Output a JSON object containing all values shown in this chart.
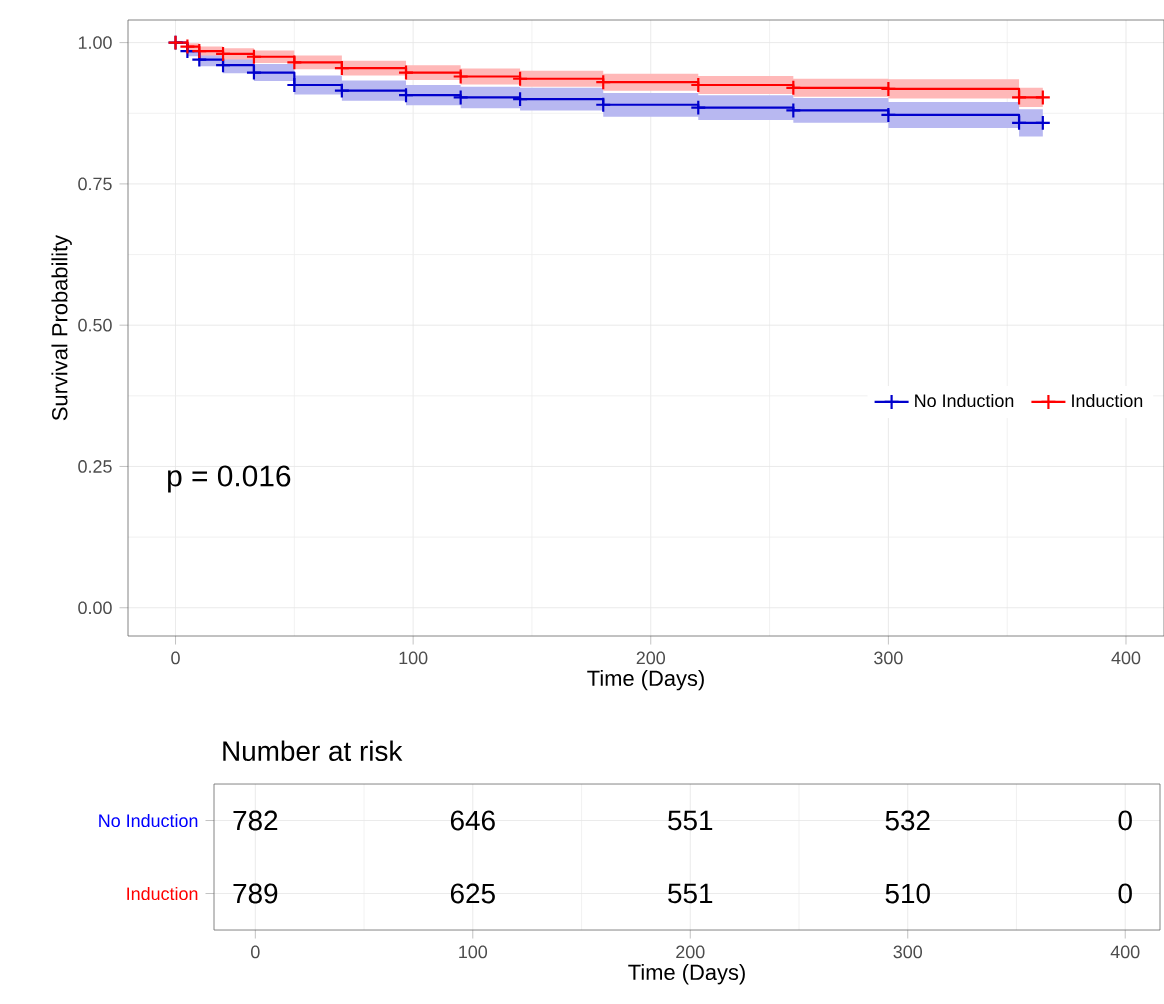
{
  "chart_data": [
    {
      "type": "step",
      "xlabel": "Time (Days)",
      "ylabel": "Survival Probability",
      "xlim": [
        -20,
        416
      ],
      "ylim": [
        -0.05,
        1.04
      ],
      "xticks": [
        0,
        100,
        200,
        300,
        400
      ],
      "yticks": [
        {
          "value": 0,
          "label": "0.00"
        },
        {
          "value": 0.25,
          "label": "0.25"
        },
        {
          "value": 0.5,
          "label": "0.50"
        },
        {
          "value": 0.75,
          "label": "0.75"
        },
        {
          "value": 1,
          "label": "1.00"
        }
      ],
      "grid": true,
      "legend": "right",
      "marker": "cross",
      "annotations": [
        "p = 0.016"
      ],
      "series": [
        {
          "name": "No Induction",
          "color": "#0000cc",
          "x": [
            0,
            5,
            10,
            20,
            33,
            50,
            70,
            97,
            120,
            145,
            180,
            220,
            260,
            300,
            355,
            365
          ],
          "values": [
            1.0,
            0.985,
            0.97,
            0.96,
            0.947,
            0.925,
            0.915,
            0.907,
            0.903,
            0.9,
            0.89,
            0.885,
            0.88,
            0.872,
            0.858,
            0.858
          ],
          "lower": [
            1.0,
            0.976,
            0.958,
            0.946,
            0.932,
            0.908,
            0.897,
            0.889,
            0.884,
            0.88,
            0.869,
            0.863,
            0.858,
            0.849,
            0.834,
            0.834
          ],
          "upper": [
            1.0,
            0.994,
            0.982,
            0.974,
            0.962,
            0.942,
            0.933,
            0.925,
            0.922,
            0.92,
            0.911,
            0.907,
            0.902,
            0.895,
            0.882,
            0.882
          ]
        },
        {
          "name": "Induction",
          "color": "#ff0000",
          "x": [
            0,
            5,
            10,
            20,
            33,
            50,
            70,
            97,
            120,
            145,
            180,
            220,
            260,
            300,
            355,
            365
          ],
          "values": [
            1.0,
            0.993,
            0.985,
            0.98,
            0.975,
            0.965,
            0.955,
            0.947,
            0.94,
            0.936,
            0.93,
            0.925,
            0.92,
            0.918,
            0.903,
            0.903
          ],
          "lower": [
            1.0,
            0.987,
            0.977,
            0.97,
            0.964,
            0.953,
            0.942,
            0.934,
            0.926,
            0.922,
            0.915,
            0.909,
            0.904,
            0.901,
            0.886,
            0.886
          ],
          "upper": [
            1.0,
            0.999,
            0.993,
            0.99,
            0.986,
            0.977,
            0.968,
            0.96,
            0.954,
            0.95,
            0.945,
            0.941,
            0.936,
            0.935,
            0.92,
            0.92
          ]
        }
      ]
    },
    {
      "type": "heatmap",
      "title": "Number at risk",
      "xlabel": "Time (Days)",
      "xlim": [
        -19,
        416
      ],
      "xticks": [
        0,
        100,
        200,
        300,
        400
      ],
      "grid": true,
      "data_labels": true,
      "x": [
        0,
        100,
        200,
        300,
        400
      ],
      "y_categories": [
        "No Induction",
        "Induction"
      ],
      "colors": [
        "#0000ff",
        "#ff0000"
      ],
      "cells": [
        [
          782,
          646,
          551,
          532,
          0
        ],
        [
          789,
          625,
          551,
          510,
          0
        ]
      ]
    }
  ]
}
